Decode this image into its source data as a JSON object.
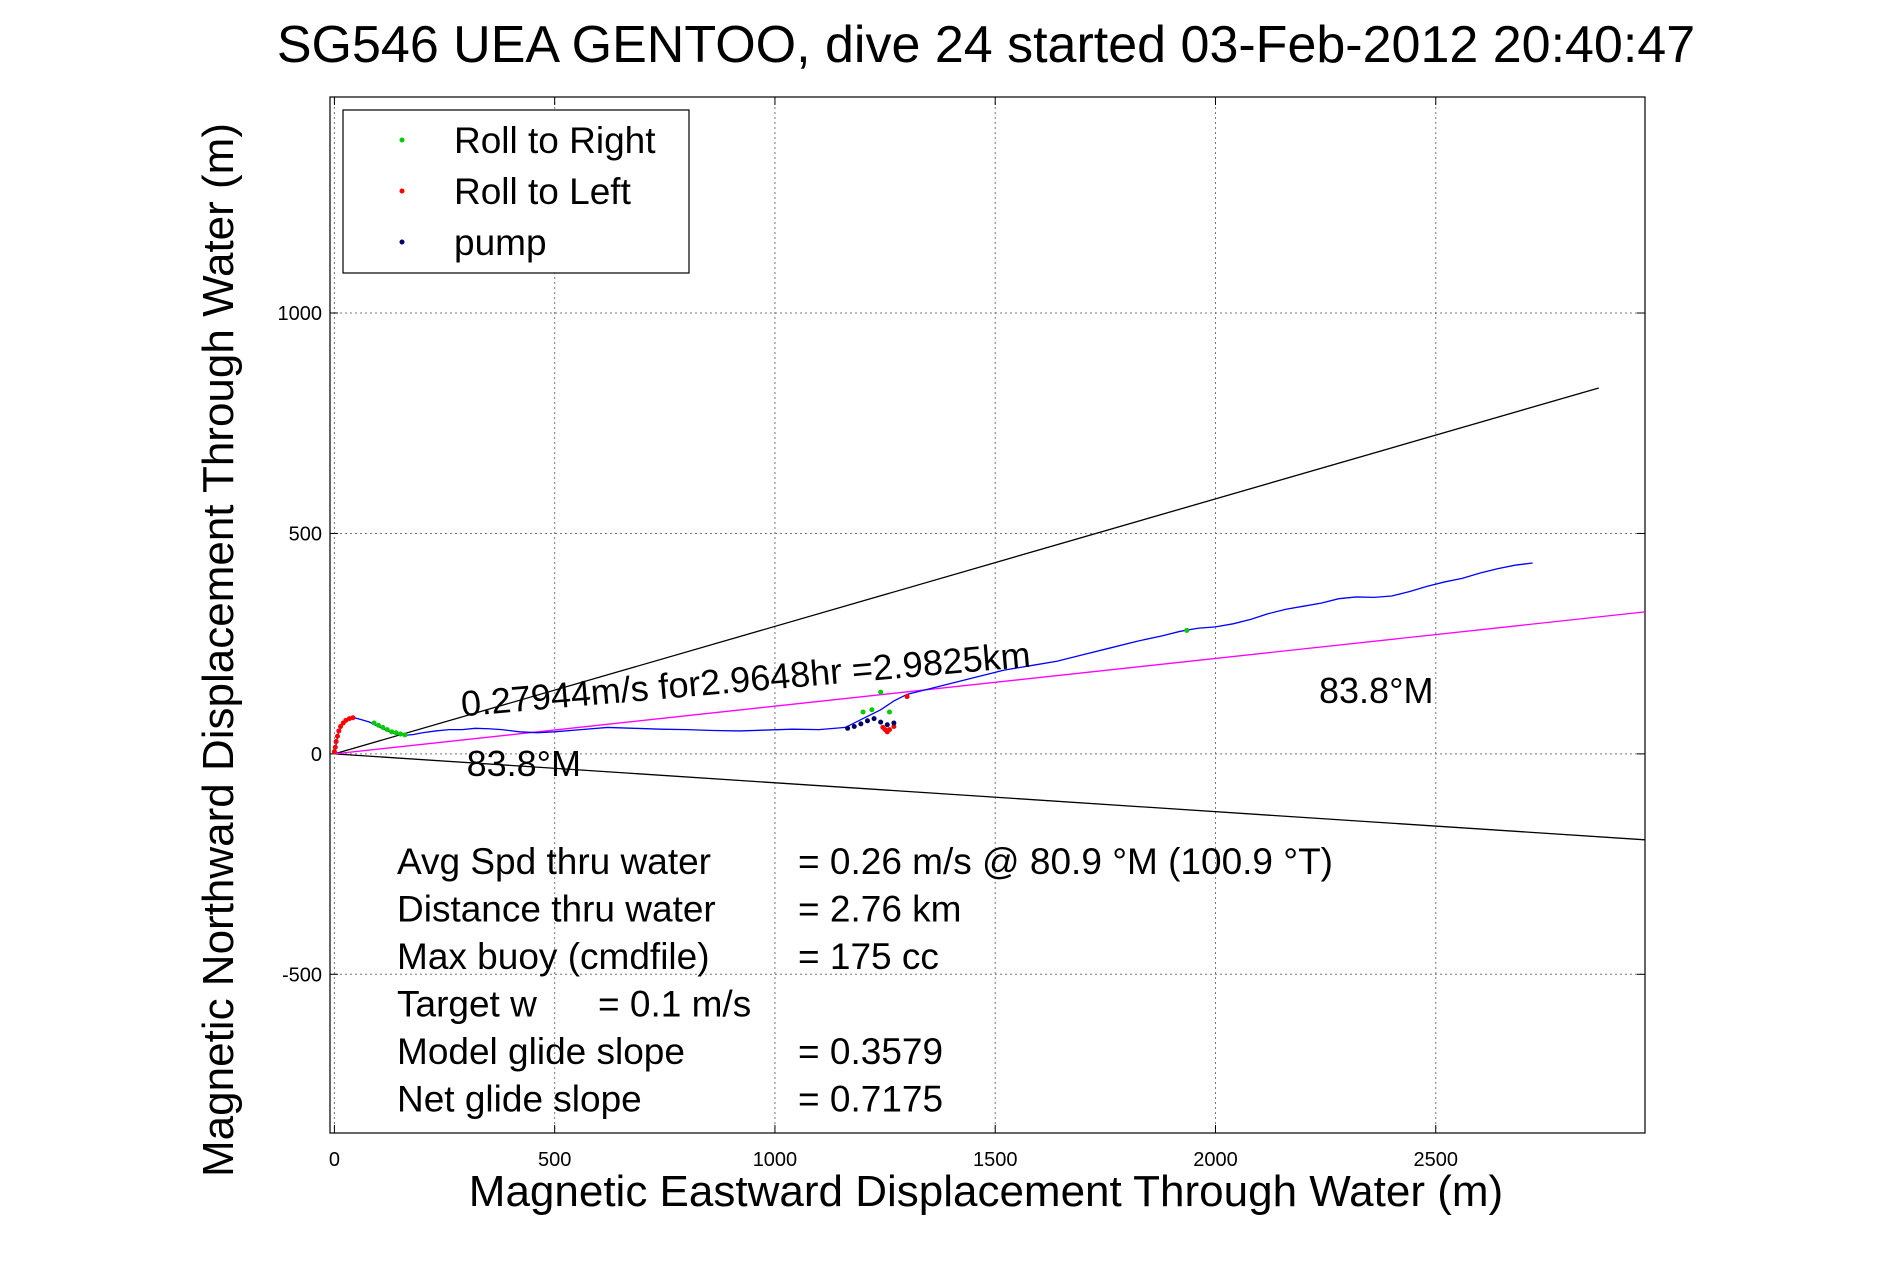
{
  "chart_data": {
    "type": "line",
    "title": "SG546 UEA GENTOO, dive 24 started 03-Feb-2012 20:40:47",
    "xlabel": "Magnetic Eastward Displacement Through Water (m)",
    "ylabel": "Magnetic Northward Displacement Through Water (m)",
    "xlim": [
      -10,
      2975
    ],
    "ylim": [
      -860,
      1490
    ],
    "xticks": [
      0,
      500,
      1000,
      1500,
      2000,
      2500
    ],
    "yticks": [
      -500,
      0,
      500,
      1000
    ],
    "x_tick_labels": [
      "0",
      "500",
      "1000",
      "1500",
      "2000",
      "2500"
    ],
    "y_tick_labels": [
      "-500",
      "0",
      "500",
      "1000"
    ],
    "grid": true,
    "legend_position": "top-left",
    "legend": [
      {
        "label": "Roll to Right",
        "color": "#00cc00",
        "marker": "dot"
      },
      {
        "label": "Roll to Left",
        "color": "#ff0000",
        "marker": "dot"
      },
      {
        "label": "pump",
        "color": "#000066",
        "marker": "dot"
      }
    ],
    "reference_lines": [
      {
        "from": [
          0,
          0
        ],
        "to": [
          2870,
          830
        ],
        "color": "#000000"
      },
      {
        "from": [
          0,
          0
        ],
        "to": [
          2975,
          -195
        ],
        "color": "#000000"
      },
      {
        "from": [
          0,
          0
        ],
        "to": [
          2975,
          322
        ],
        "color": "#ff00ff"
      }
    ],
    "track": {
      "color": "#0000ff",
      "x": [
        0,
        8,
        18,
        30,
        45,
        60,
        80,
        100,
        120,
        140,
        160,
        180,
        200,
        230,
        260,
        290,
        320,
        350,
        380,
        420,
        460,
        500,
        560,
        620,
        680,
        740,
        800,
        860,
        920,
        980,
        1040,
        1100,
        1160,
        1200,
        1240,
        1270,
        1300,
        1340,
        1400,
        1460,
        1520,
        1580,
        1640,
        1700,
        1760,
        1820,
        1880,
        1920,
        1960,
        2000,
        2040,
        2080,
        2120,
        2160,
        2200,
        2240,
        2280,
        2320,
        2360,
        2400,
        2440,
        2480,
        2520,
        2560,
        2600,
        2640,
        2680,
        2720
      ],
      "y": [
        0,
        45,
        68,
        80,
        82,
        78,
        72,
        62,
        52,
        45,
        42,
        44,
        48,
        52,
        55,
        55,
        58,
        57,
        55,
        50,
        48,
        50,
        55,
        60,
        58,
        56,
        55,
        53,
        52,
        54,
        56,
        55,
        60,
        80,
        100,
        120,
        135,
        145,
        160,
        175,
        190,
        200,
        210,
        225,
        240,
        255,
        268,
        278,
        285,
        288,
        295,
        305,
        318,
        328,
        335,
        342,
        352,
        356,
        355,
        358,
        368,
        380,
        390,
        398,
        410,
        420,
        428,
        433
      ]
    },
    "roll_right_points": {
      "color": "#00cc00",
      "x": [
        90,
        100,
        110,
        120,
        130,
        140,
        150,
        160,
        1200,
        1220,
        1240,
        1260,
        1935
      ],
      "y": [
        70,
        65,
        60,
        55,
        50,
        48,
        45,
        43,
        95,
        100,
        140,
        95,
        280
      ]
    },
    "roll_left_points": {
      "color": "#ff0000",
      "x": [
        0,
        2,
        4,
        7,
        10,
        14,
        20,
        26,
        34,
        42,
        1245,
        1250,
        1255,
        1260,
        1270,
        1300
      ],
      "y": [
        5,
        15,
        28,
        40,
        52,
        62,
        70,
        76,
        80,
        82,
        60,
        55,
        50,
        55,
        62,
        130
      ]
    },
    "pump_points": {
      "color": "#000066",
      "x": [
        1165,
        1180,
        1195,
        1210,
        1225,
        1240,
        1255,
        1270
      ],
      "y": [
        58,
        62,
        68,
        75,
        80,
        72,
        66,
        70
      ]
    },
    "annotations": [
      {
        "text": "0.27944m/s for2.9648hr =2.9825km",
        "x": 290,
        "y": 85,
        "rotation": -5
      },
      {
        "text": "83.8",
        "x": 300,
        "y": -50,
        "rotation": 0
      },
      {
        "text": "83.8",
        "x": 2235,
        "y": 115,
        "rotation": 0
      }
    ],
    "annotation_unit": "°M",
    "stats": [
      {
        "label": "Avg Spd thru water",
        "value": "=  0.26 m/s @  80.9 °M (100.9 °T)"
      },
      {
        "label": "Distance thru water",
        "value": "=  2.76 km"
      },
      {
        "label": "Max buoy (cmdfile)",
        "value": "= 175 cc"
      },
      {
        "label": "Target w",
        "value": "= 0.1 m/s"
      },
      {
        "label": "Model glide slope",
        "value": "= 0.3579"
      },
      {
        "label": "Net glide slope",
        "value": "= 0.7175"
      }
    ]
  }
}
